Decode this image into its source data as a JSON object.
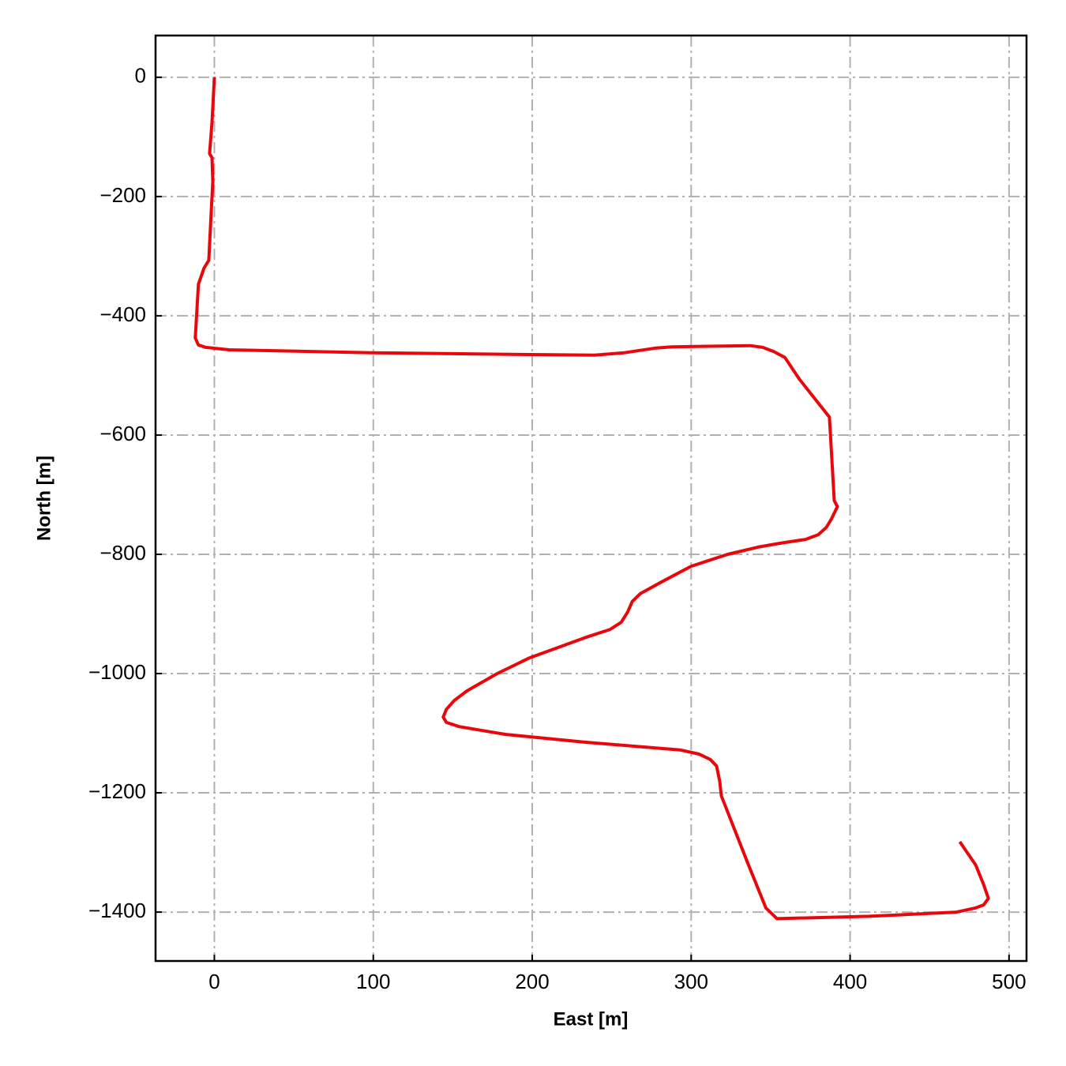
{
  "chart_data": {
    "type": "line",
    "xlabel": "East [m]",
    "ylabel": "North [m]",
    "x": [
      0,
      -1.5,
      -3,
      -1.5,
      -1,
      -2,
      -3.5,
      -6.5,
      -10,
      -12,
      -10,
      -5.5,
      9.4,
      99,
      198,
      239,
      258,
      278,
      288,
      337,
      345,
      352,
      359,
      368,
      387,
      390,
      392,
      388,
      385,
      380,
      372,
      357,
      342,
      323,
      300,
      283,
      268,
      263,
      260,
      256,
      249,
      233,
      198,
      178,
      159,
      151,
      146,
      144,
      146,
      154,
      183,
      233,
      293,
      305,
      312,
      316,
      318,
      319,
      335,
      347,
      354,
      412,
      467,
      479,
      484,
      487,
      484,
      479,
      469
    ],
    "values": [
      0,
      -75,
      -128,
      -135,
      -175,
      -228,
      -307,
      -320,
      -347,
      -437,
      -449,
      -453,
      -457,
      -462,
      -465,
      -466,
      -462,
      -454,
      -452,
      -450,
      -453,
      -460,
      -470,
      -506,
      -570,
      -710,
      -720,
      -742,
      -755,
      -767,
      -775,
      -781,
      -788,
      -800,
      -820,
      -844,
      -866,
      -879,
      -897,
      -914,
      -926,
      -940,
      -974,
      -1000,
      -1029,
      -1045,
      -1060,
      -1073,
      -1082,
      -1089,
      -1102,
      -1115,
      -1128,
      -1135,
      -1144,
      -1155,
      -1181,
      -1205,
      -1314,
      -1393,
      -1411,
      -1407,
      -1400,
      -1393,
      -1388,
      -1377,
      -1354,
      -1321,
      -1282
    ],
    "color": "#e8080c",
    "xlim": [
      -37,
      511
    ],
    "ylim": [
      -1482,
      70
    ],
    "xticks": [
      0,
      100,
      200,
      300,
      400,
      500
    ],
    "yticks": [
      0,
      {
        "value": -200,
        "label": "−200"
      },
      {
        "value": -400,
        "label": "−400"
      },
      {
        "value": -600,
        "label": "−600"
      },
      {
        "value": -800,
        "label": "−800"
      },
      {
        "value": -1000,
        "label": "−1000"
      },
      {
        "value": -1200,
        "label": "−1200"
      },
      {
        "value": -1400,
        "label": "−1400"
      }
    ],
    "grid": true
  }
}
